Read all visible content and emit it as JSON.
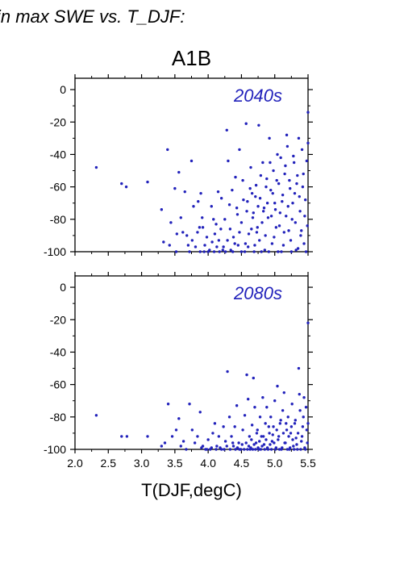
{
  "heading": "in max SWE vs. T_DJF:",
  "scenario": "A1B",
  "accent_color": "#2222bb",
  "chart_data": [
    {
      "type": "scatter",
      "annotation": "2040s",
      "xlabel": "T(DJF,degC)",
      "xlim": [
        2.0,
        5.5
      ],
      "ylim": [
        -100,
        7
      ],
      "x_ticks": [
        2.0,
        2.5,
        3.0,
        3.5,
        4.0,
        4.5,
        5.0,
        5.5
      ],
      "x_tick_labels": [
        "2.0",
        "2.5",
        "3.0",
        "3.5",
        "4.0",
        "4.5",
        "5.0",
        "5.5"
      ],
      "y_ticks": [
        0,
        -20,
        -40,
        -60,
        -80,
        -100
      ],
      "y_tick_labels": [
        "0",
        "-20",
        "-40",
        "-60",
        "-80",
        "-100"
      ],
      "show_x_tick_labels": false,
      "points": [
        [
          2.32,
          -48
        ],
        [
          2.7,
          -58
        ],
        [
          2.77,
          -60
        ],
        [
          3.09,
          -57
        ],
        [
          3.3,
          -74
        ],
        [
          3.33,
          -94
        ],
        [
          3.39,
          -37
        ],
        [
          3.44,
          -82
        ],
        [
          3.5,
          -61
        ],
        [
          3.53,
          -89
        ],
        [
          3.56,
          -51
        ],
        [
          3.59,
          -79
        ],
        [
          3.65,
          -63
        ],
        [
          3.68,
          -90
        ],
        [
          3.72,
          -100
        ],
        [
          3.75,
          -44
        ],
        [
          3.78,
          -72
        ],
        [
          3.85,
          -69
        ],
        [
          3.87,
          -85
        ],
        [
          3.89,
          -64
        ],
        [
          3.91,
          -79
        ],
        [
          3.95,
          -96
        ],
        [
          4.0,
          -100
        ],
        [
          4.05,
          -72
        ],
        [
          4.08,
          -80
        ],
        [
          4.1,
          -89
        ],
        [
          4.12,
          -83
        ],
        [
          4.15,
          -63
        ],
        [
          4.17,
          -100
        ],
        [
          4.2,
          -67
        ],
        [
          4.22,
          -99
        ],
        [
          4.25,
          -80
        ],
        [
          4.28,
          -25
        ],
        [
          4.3,
          -44
        ],
        [
          4.32,
          -71
        ],
        [
          4.34,
          -99
        ],
        [
          4.36,
          -62
        ],
        [
          4.38,
          -91
        ],
        [
          4.41,
          -54
        ],
        [
          4.43,
          -73
        ],
        [
          4.45,
          -96
        ],
        [
          4.47,
          -37
        ],
        [
          4.5,
          -82
        ],
        [
          4.52,
          -56
        ],
        [
          4.55,
          -100
        ],
        [
          4.57,
          -21
        ],
        [
          4.59,
          -69
        ],
        [
          4.61,
          -89
        ],
        [
          4.64,
          -48
        ],
        [
          4.66,
          -64
        ],
        [
          4.68,
          -76
        ],
        [
          4.7,
          -96
        ],
        [
          4.72,
          -59
        ],
        [
          4.74,
          -85
        ],
        [
          4.76,
          -22
        ],
        [
          4.78,
          -67
        ],
        [
          4.8,
          -100
        ],
        [
          4.82,
          -45
        ],
        [
          4.84,
          -73
        ],
        [
          4.86,
          -90
        ],
        [
          4.88,
          -55
        ],
        [
          4.9,
          -79
        ],
        [
          4.92,
          -30
        ],
        [
          4.94,
          -62
        ],
        [
          4.96,
          -95
        ],
        [
          4.98,
          -50
        ],
        [
          5.0,
          -70
        ],
        [
          5.02,
          -85
        ],
        [
          5.04,
          -40
        ],
        [
          5.06,
          -58
        ],
        [
          5.08,
          -76
        ],
        [
          5.1,
          -100
        ],
        [
          5.12,
          -65
        ],
        [
          5.14,
          -88
        ],
        [
          5.16,
          -47
        ],
        [
          5.18,
          -28
        ],
        [
          5.2,
          -72
        ],
        [
          5.22,
          -56
        ],
        [
          5.24,
          -93
        ],
        [
          5.26,
          -80
        ],
        [
          5.28,
          -41
        ],
        [
          5.3,
          -64
        ],
        [
          5.32,
          -99
        ],
        [
          5.34,
          -53
        ],
        [
          5.36,
          -30
        ],
        [
          5.38,
          -75
        ],
        [
          5.4,
          -87
        ],
        [
          5.42,
          -60
        ],
        [
          5.44,
          -95
        ],
        [
          5.46,
          -68
        ],
        [
          5.48,
          -44
        ],
        [
          5.5,
          -14
        ],
        [
          5.5,
          -33
        ],
        [
          5.49,
          -84
        ],
        [
          5.47,
          -100
        ],
        [
          5.45,
          -78
        ],
        [
          5.43,
          -52
        ],
        [
          5.41,
          -37
        ],
        [
          5.39,
          -90
        ],
        [
          5.37,
          -66
        ],
        [
          5.35,
          -98
        ],
        [
          5.33,
          -58
        ],
        [
          5.31,
          -82
        ],
        [
          5.29,
          -45
        ],
        [
          5.27,
          -70
        ],
        [
          5.25,
          -100
        ],
        [
          5.23,
          -61
        ],
        [
          5.21,
          -87
        ],
        [
          5.19,
          -35
        ],
        [
          5.17,
          -78
        ],
        [
          5.15,
          -52
        ],
        [
          5.13,
          -96
        ],
        [
          5.11,
          -69
        ],
        [
          5.09,
          -42
        ],
        [
          5.07,
          -84
        ],
        [
          5.05,
          -100
        ],
        [
          5.03,
          -56
        ],
        [
          5.01,
          -74
        ],
        [
          4.99,
          -91
        ],
        [
          4.97,
          -64
        ],
        [
          4.95,
          -78
        ],
        [
          4.93,
          -45
        ],
        [
          4.91,
          -100
        ],
        [
          4.89,
          -70
        ],
        [
          4.87,
          -60
        ],
        [
          4.85,
          -99
        ],
        [
          4.83,
          -75
        ],
        [
          4.81,
          -82
        ],
        [
          4.79,
          -53
        ],
        [
          4.77,
          -93
        ],
        [
          4.75,
          -72
        ],
        [
          4.73,
          -88
        ],
        [
          4.71,
          -66
        ],
        [
          4.69,
          -100
        ],
        [
          4.67,
          -79
        ],
        [
          4.65,
          -86
        ],
        [
          4.63,
          -61
        ],
        [
          4.6,
          -97
        ],
        [
          4.58,
          -75
        ],
        [
          4.56,
          -95
        ],
        [
          4.53,
          -68
        ],
        [
          4.5,
          -100
        ],
        [
          4.47,
          -88
        ],
        [
          4.44,
          -77
        ],
        [
          4.4,
          -95
        ],
        [
          4.37,
          -100
        ],
        [
          4.33,
          -86
        ],
        [
          4.29,
          -93
        ],
        [
          4.26,
          -100
        ],
        [
          4.23,
          -97
        ],
        [
          4.19,
          -86
        ],
        [
          4.16,
          -93
        ],
        [
          4.13,
          -97
        ],
        [
          4.09,
          -100
        ],
        [
          4.06,
          -94
        ],
        [
          4.02,
          -99
        ],
        [
          3.98,
          -91
        ],
        [
          3.94,
          -100
        ],
        [
          3.92,
          -85
        ],
        [
          3.88,
          -100
        ],
        [
          3.84,
          -88
        ],
        [
          3.81,
          -97
        ],
        [
          3.76,
          -93
        ],
        [
          3.7,
          -96
        ],
        [
          3.62,
          -88
        ],
        [
          3.52,
          -100
        ],
        [
          3.42,
          -96
        ]
      ]
    },
    {
      "type": "scatter",
      "annotation": "2080s",
      "xlabel": "T(DJF,degC)",
      "xlim": [
        2.0,
        5.5
      ],
      "ylim": [
        -100,
        7
      ],
      "x_ticks": [
        2.0,
        2.5,
        3.0,
        3.5,
        4.0,
        4.5,
        5.0,
        5.5
      ],
      "x_tick_labels": [
        "2.0",
        "2.5",
        "3.0",
        "3.5",
        "4.0",
        "4.5",
        "5.0",
        "5.5"
      ],
      "y_ticks": [
        0,
        -20,
        -40,
        -60,
        -80,
        -100
      ],
      "y_tick_labels": [
        "0",
        "-20",
        "-40",
        "-60",
        "-80",
        "-100"
      ],
      "show_x_tick_labels": true,
      "points": [
        [
          2.32,
          -79
        ],
        [
          2.7,
          -92
        ],
        [
          2.78,
          -92
        ],
        [
          3.09,
          -92
        ],
        [
          3.3,
          -98
        ],
        [
          3.35,
          -96
        ],
        [
          3.4,
          -72
        ],
        [
          3.46,
          -92
        ],
        [
          3.52,
          -88
        ],
        [
          3.56,
          -81
        ],
        [
          3.59,
          -98
        ],
        [
          3.63,
          -95
        ],
        [
          3.67,
          -100
        ],
        [
          3.72,
          -72
        ],
        [
          3.76,
          -88
        ],
        [
          3.8,
          -96
        ],
        [
          3.84,
          -92
        ],
        [
          3.88,
          -77
        ],
        [
          3.92,
          -98
        ],
        [
          3.96,
          -100
        ],
        [
          4.0,
          -94
        ],
        [
          4.03,
          -100
        ],
        [
          4.07,
          -90
        ],
        [
          4.1,
          -84
        ],
        [
          4.13,
          -98
        ],
        [
          4.16,
          -92
        ],
        [
          4.2,
          -100
        ],
        [
          4.23,
          -86
        ],
        [
          4.26,
          -95
        ],
        [
          4.29,
          -52
        ],
        [
          4.32,
          -80
        ],
        [
          4.35,
          -92
        ],
        [
          4.38,
          -98
        ],
        [
          4.4,
          -86
        ],
        [
          4.43,
          -73
        ],
        [
          4.46,
          -96
        ],
        [
          4.49,
          -100
        ],
        [
          4.52,
          -88
        ],
        [
          4.55,
          -79
        ],
        [
          4.58,
          -54
        ],
        [
          4.6,
          -69
        ],
        [
          4.62,
          -92
        ],
        [
          4.64,
          -99
        ],
        [
          4.66,
          -85
        ],
        [
          4.68,
          -56
        ],
        [
          4.7,
          -74
        ],
        [
          4.72,
          -96
        ],
        [
          4.74,
          -88
        ],
        [
          4.76,
          -100
        ],
        [
          4.78,
          -80
        ],
        [
          4.8,
          -92
        ],
        [
          4.82,
          -68
        ],
        [
          4.84,
          -97
        ],
        [
          4.86,
          -84
        ],
        [
          4.88,
          -74
        ],
        [
          4.9,
          -100
        ],
        [
          4.92,
          -90
        ],
        [
          4.94,
          -80
        ],
        [
          4.96,
          -95
        ],
        [
          4.98,
          -86
        ],
        [
          5.0,
          -70
        ],
        [
          5.02,
          -99
        ],
        [
          5.04,
          -61
        ],
        [
          5.06,
          -92
        ],
        [
          5.08,
          -84
        ],
        [
          5.1,
          -100
        ],
        [
          5.12,
          -76
        ],
        [
          5.14,
          -65
        ],
        [
          5.16,
          -96
        ],
        [
          5.18,
          -88
        ],
        [
          5.2,
          -80
        ],
        [
          5.22,
          -100
        ],
        [
          5.24,
          -90
        ],
        [
          5.26,
          -72
        ],
        [
          5.28,
          -98
        ],
        [
          5.3,
          -84
        ],
        [
          5.32,
          -93
        ],
        [
          5.34,
          -100
        ],
        [
          5.36,
          -50
        ],
        [
          5.38,
          -76
        ],
        [
          5.4,
          -95
        ],
        [
          5.42,
          -86
        ],
        [
          5.44,
          -68
        ],
        [
          5.46,
          -100
        ],
        [
          5.48,
          -88
        ],
        [
          5.5,
          -22
        ],
        [
          5.5,
          -84
        ],
        [
          5.49,
          -96
        ],
        [
          5.47,
          -74
        ],
        [
          5.45,
          -99
        ],
        [
          5.43,
          -80
        ],
        [
          5.41,
          -92
        ],
        [
          5.39,
          -100
        ],
        [
          5.37,
          -66
        ],
        [
          5.35,
          -90
        ],
        [
          5.33,
          -97
        ],
        [
          5.31,
          -82
        ],
        [
          5.29,
          -100
        ],
        [
          5.27,
          -94
        ],
        [
          5.25,
          -86
        ],
        [
          5.23,
          -99
        ],
        [
          5.21,
          -92
        ],
        [
          5.19,
          -100
        ],
        [
          5.17,
          -84
        ],
        [
          5.15,
          -96
        ],
        [
          5.13,
          -90
        ],
        [
          5.11,
          -99
        ],
        [
          5.09,
          -82
        ],
        [
          5.07,
          -100
        ],
        [
          5.05,
          -94
        ],
        [
          5.03,
          -88
        ],
        [
          5.01,
          -100
        ],
        [
          4.99,
          -96
        ],
        [
          4.97,
          -91
        ],
        [
          4.95,
          -100
        ],
        [
          4.93,
          -97
        ],
        [
          4.91,
          -86
        ],
        [
          4.89,
          -99
        ],
        [
          4.87,
          -94
        ],
        [
          4.85,
          -100
        ],
        [
          4.83,
          -92
        ],
        [
          4.81,
          -98
        ],
        [
          4.79,
          -100
        ],
        [
          4.77,
          -95
        ],
        [
          4.75,
          -99
        ],
        [
          4.73,
          -90
        ],
        [
          4.71,
          -100
        ],
        [
          4.69,
          -97
        ],
        [
          4.67,
          -100
        ],
        [
          4.65,
          -94
        ],
        [
          4.63,
          -100
        ],
        [
          4.61,
          -98
        ],
        [
          4.59,
          -100
        ],
        [
          4.57,
          -96
        ],
        [
          4.54,
          -100
        ],
        [
          4.51,
          -97
        ],
        [
          4.47,
          -100
        ],
        [
          4.44,
          -99
        ],
        [
          4.41,
          -100
        ],
        [
          4.37,
          -96
        ],
        [
          4.33,
          -100
        ],
        [
          4.28,
          -98
        ],
        [
          4.24,
          -100
        ],
        [
          4.18,
          -99
        ],
        [
          4.12,
          -100
        ],
        [
          4.05,
          -99
        ],
        [
          3.98,
          -100
        ],
        [
          3.9,
          -99
        ]
      ]
    }
  ]
}
